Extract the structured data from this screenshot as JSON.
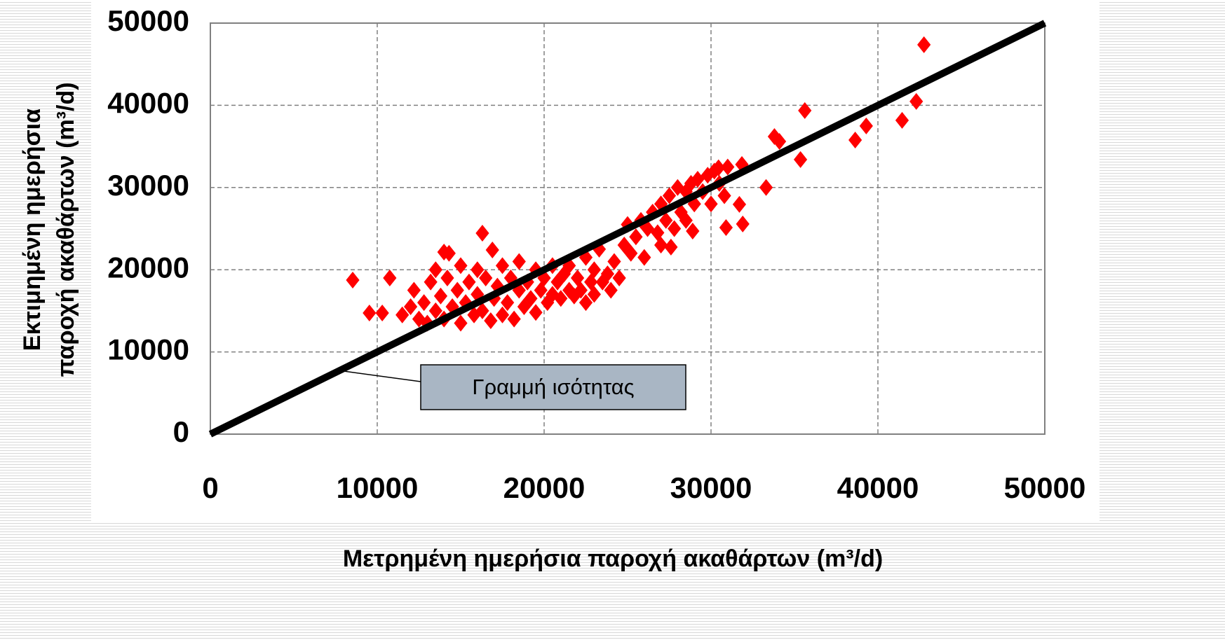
{
  "chart_data": {
    "type": "scatter",
    "x_label": "Μετρημένη ημερήσια παροχή ακαθάρτων (m³/d)",
    "y_label": [
      "Εκτιμημένη ημερήσια",
      "παροχή ακαθάρτων (m³/d)"
    ],
    "annotations": [
      {
        "text": "Γραμμή ισότητας"
      }
    ],
    "xlim": [
      0,
      50000
    ],
    "ylim": [
      0,
      50000
    ],
    "xticks": [
      0,
      10000,
      20000,
      30000,
      40000,
      50000
    ],
    "yticks": [
      0,
      10000,
      20000,
      30000,
      40000,
      50000
    ],
    "grid": true,
    "series": [
      {
        "color": "#ff0000",
        "marker": "diamond",
        "x": [
          8530,
          9530,
          10750,
          10300,
          42760,
          42300,
          41450,
          39300,
          38640,
          35620,
          35360,
          33800,
          34100,
          33300,
          30900,
          31900,
          31700,
          27600,
          28900,
          16300,
          14000,
          14300,
          16900,
          30450,
          31850,
          11500,
          12000,
          12200,
          12500,
          12800,
          13000,
          13200,
          13500,
          13500,
          13800,
          14000,
          14200,
          14500,
          14800,
          15000,
          15000,
          15300,
          15500,
          15800,
          16000,
          16000,
          16300,
          16500,
          16800,
          17000,
          17200,
          17500,
          17500,
          17800,
          18000,
          18200,
          18500,
          18500,
          18800,
          19000,
          19200,
          19500,
          19500,
          19800,
          20000,
          20200,
          20500,
          20500,
          20800,
          21000,
          21200,
          21500,
          21500,
          21800,
          22000,
          22200,
          22500,
          22500,
          22800,
          23000,
          23000,
          23300,
          23500,
          23800,
          24000,
          24200,
          24500,
          24800,
          25000,
          25200,
          25500,
          25800,
          26000,
          26200,
          26500,
          26800,
          27000,
          27000,
          27300,
          27500,
          27800,
          28000,
          28200,
          28500,
          28500,
          28800,
          29000,
          29200,
          29500,
          29800,
          30000,
          30200,
          30500,
          30800,
          31000
        ],
        "values": [
          18740,
          14740,
          19000,
          14740,
          47370,
          40470,
          38170,
          37490,
          35780,
          39360,
          33400,
          36200,
          35600,
          30000,
          25130,
          25560,
          27950,
          22750,
          24700,
          24450,
          22150,
          22000,
          22400,
          32400,
          32800,
          14500,
          15500,
          17500,
          14000,
          16000,
          13500,
          18500,
          15000,
          20000,
          16800,
          14000,
          19000,
          15500,
          17500,
          13500,
          20500,
          16000,
          18500,
          14500,
          17000,
          20000,
          15000,
          19000,
          13800,
          16500,
          18000,
          14500,
          20500,
          16000,
          19000,
          14000,
          17500,
          21000,
          15500,
          18500,
          16500,
          20000,
          14800,
          17500,
          19000,
          16000,
          20500,
          17000,
          18500,
          16500,
          19500,
          17500,
          20500,
          16800,
          19000,
          17500,
          21500,
          16000,
          18500,
          20000,
          17000,
          22500,
          18500,
          19500,
          17500,
          21000,
          19000,
          23000,
          25500,
          22000,
          24000,
          26000,
          21500,
          25000,
          27000,
          24500,
          28000,
          23000,
          26000,
          29000,
          25000,
          30000,
          27000,
          29500,
          26000,
          30500,
          28000,
          31000,
          29500,
          31500,
          28000,
          32000,
          30500,
          29000,
          32500
        ]
      },
      {
        "color": "#000000",
        "type": "line",
        "x": [
          0,
          50000
        ],
        "values": [
          0,
          50000
        ]
      }
    ]
  }
}
